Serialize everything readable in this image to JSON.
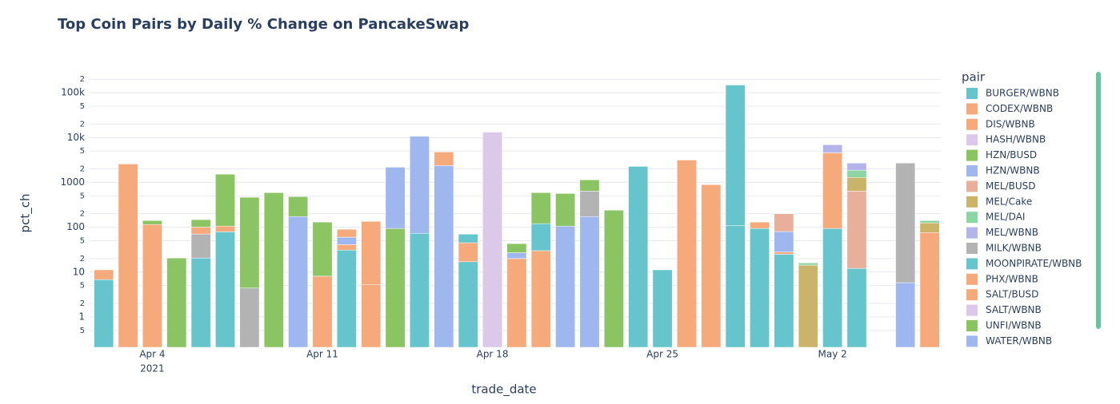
{
  "chart_data": {
    "type": "bar",
    "title": "Top Coin Pairs by Daily % Change on PancakeSwap",
    "x_label": "trade_date",
    "y_label": "pct_ch",
    "legend_title": "pair",
    "legend": "right",
    "log_y": true,
    "grid": true,
    "barmode": "stack",
    "xlim": [
      "2021-04-01T10:00",
      "2021-05-06T11:00"
    ],
    "xticks": [
      {
        "value": "2021-04-04",
        "label": "Apr 4"
      },
      {
        "value": "2021-04-11",
        "label": "Apr 11"
      },
      {
        "value": "2021-04-18",
        "label": "Apr 18"
      },
      {
        "value": "2021-04-25",
        "label": "Apr 25"
      },
      {
        "value": "2021-05-02",
        "label": "May 2"
      }
    ],
    "x_year_label": "2021",
    "ylim": [
      0.21,
      210000
    ],
    "yticks": [
      {
        "value": 0.5,
        "label": "5"
      },
      1,
      2,
      5,
      10,
      {
        "value": 20,
        "label": "2"
      },
      {
        "value": 50,
        "label": "5"
      },
      100,
      {
        "value": 200,
        "label": "2"
      },
      {
        "value": 500,
        "label": "5"
      },
      1000,
      {
        "value": 2000,
        "label": "2"
      },
      {
        "value": 5000,
        "label": "5"
      },
      {
        "value": 10000,
        "label": "10k"
      },
      {
        "value": 20000,
        "label": "2"
      },
      {
        "value": 50000,
        "label": "5"
      },
      {
        "value": 100000,
        "label": "100k"
      },
      {
        "value": 200000,
        "label": "2"
      }
    ],
    "series": [
      {
        "name": "BURGER/WBNB",
        "color": "#66c5cc",
        "x": [
          "2021-04-02",
          "2021-04-06",
          "2021-04-07",
          "2021-04-12",
          "2021-04-15",
          "2021-04-17",
          "2021-04-28",
          "2021-04-30",
          "2021-05-02",
          "2021-05-03"
        ],
        "values": [
          6.8,
          20.6,
          79,
          31,
          73,
          17,
          110,
          25,
          94,
          12.1
        ]
      },
      {
        "name": "CODEX/WBNB",
        "color": "#f6a97a",
        "x": [
          "2021-04-02",
          "2021-04-07",
          "2021-04-12",
          "2021-04-13",
          "2021-04-17",
          "2021-04-19",
          "2021-04-20",
          "2021-04-30",
          "2021-05-06"
        ],
        "values": [
          4.4,
          27,
          10,
          5.3,
          28,
          20,
          30,
          3,
          76
        ]
      },
      {
        "name": "DIS/WBNB",
        "color": "#f6a97a",
        "x": [
          "2021-04-03",
          "2021-04-13",
          "2021-05-02"
        ],
        "values": [
          2570,
          130,
          4466
        ]
      },
      {
        "name": "HASH/WBNB",
        "color": "#dcc8e8",
        "x": [
          "2021-04-18"
        ],
        "values": [
          13200
        ]
      },
      {
        "name": "HZN/BUSD",
        "color": "#8bc563",
        "x": [
          "2021-04-05",
          "2021-04-07",
          "2021-04-09",
          "2021-04-14",
          "2021-04-23"
        ],
        "values": [
          20.6,
          1414,
          590,
          94,
          240
        ]
      },
      {
        "name": "HZN/WBNB",
        "color": "#9fb7ef",
        "x": [
          "2021-04-10",
          "2021-04-12",
          "2021-04-14",
          "2021-04-15",
          "2021-04-16",
          "2021-04-19",
          "2021-04-21",
          "2021-04-22",
          "2021-04-30",
          "2021-05-05"
        ],
        "values": [
          173,
          19,
          2086,
          10627,
          2370,
          7,
          106,
          173,
          52,
          5.8
        ]
      },
      {
        "name": "MEL/BUSD",
        "color": "#e8b09a",
        "x": [
          "2021-04-30",
          "2021-05-03"
        ],
        "values": [
          120,
          628
        ]
      },
      {
        "name": "MEL/Cake",
        "color": "#c9b46a",
        "x": [
          "2021-05-01",
          "2021-05-03",
          "2021-05-06"
        ],
        "values": [
          14.3,
          650,
          49
        ]
      },
      {
        "name": "MEL/DAI",
        "color": "#8bd6a4",
        "x": [
          "2021-05-01",
          "2021-05-03",
          "2021-05-06"
        ],
        "values": [
          1.7,
          580,
          16
        ]
      },
      {
        "name": "MEL/WBNB",
        "color": "#b4b4ea",
        "x": [
          "2021-05-02",
          "2021-05-03"
        ],
        "values": [
          2340,
          830
        ]
      },
      {
        "name": "MILK/WBNB",
        "color": "#b3b3b3",
        "x": [
          "2021-04-06",
          "2021-04-08",
          "2021-04-22",
          "2021-05-05"
        ],
        "values": [
          50,
          4.4,
          467,
          2694
        ]
      },
      {
        "name": "MOONPIRATE/WBNB",
        "color": "#66c5cc",
        "x": [
          "2021-04-17",
          "2021-04-20",
          "2021-04-24",
          "2021-04-25",
          "2021-04-28",
          "2021-04-29"
        ],
        "values": [
          25,
          90,
          2270,
          11.2,
          148000,
          94
        ]
      },
      {
        "name": "PHX/WBNB",
        "color": "#f6a97a",
        "x": [
          "2021-04-04",
          "2021-04-11",
          "2021-04-12",
          "2021-04-16",
          "2021-04-26",
          "2021-04-27",
          "2021-04-29"
        ],
        "values": [
          115,
          8.1,
          30,
          2390,
          3150,
          890,
          36
        ]
      },
      {
        "name": "SALT/BUSD",
        "color": "#f6a97a",
        "x": [
          "2021-04-06"
        ],
        "values": [
          30
        ]
      },
      {
        "name": "SALT/WBNB",
        "color": "#dcc8e8",
        "x": [],
        "values": []
      },
      {
        "name": "UNFI/WBNB",
        "color": "#8bc563",
        "x": [
          "2021-04-04",
          "2021-04-06",
          "2021-04-08",
          "2021-04-10",
          "2021-04-11",
          "2021-04-19",
          "2021-04-20",
          "2021-04-21",
          "2021-04-22"
        ],
        "values": [
          26,
          47,
          461,
          307,
          122,
          16,
          470,
          459,
          500
        ]
      },
      {
        "name": "WATER/WBNB",
        "color": "#9fb7ef",
        "x": [],
        "values": []
      }
    ]
  }
}
